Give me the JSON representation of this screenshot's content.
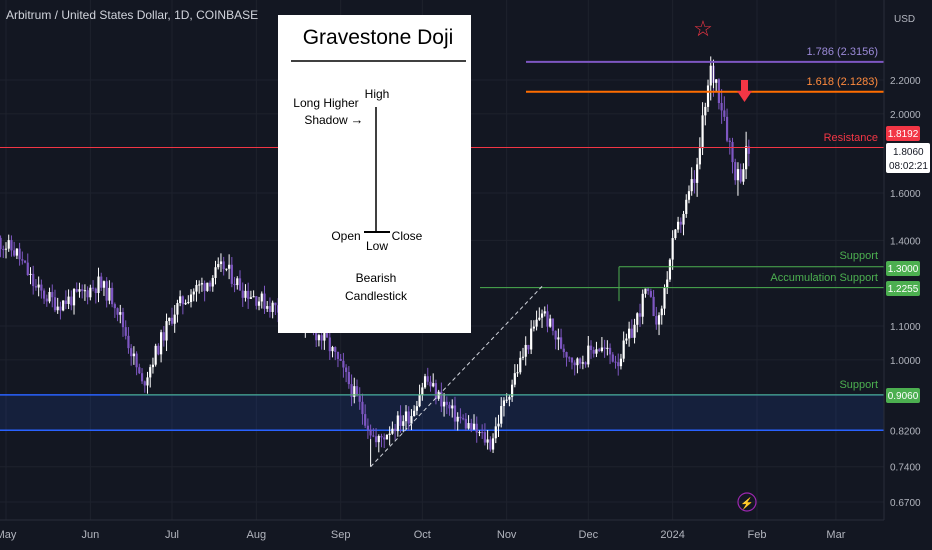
{
  "header": {
    "title": "Arbitrum / United States Dollar, 1D, COINBASE",
    "currency": "USD"
  },
  "inset": {
    "title": "Gravestone Doji",
    "high": "High",
    "shadow_line1": "Long Higher",
    "shadow_line2": "Shadow",
    "arrow": "→",
    "open": "Open",
    "close": "Close",
    "low": "Low",
    "caption_line1": "Bearish",
    "caption_line2": "Candlestick"
  },
  "annotations": {
    "fib_1786": "1.786 (2.3156)",
    "fib_1618": "1.618 (2.1283)",
    "resistance": "Resistance",
    "support_top": "Support",
    "accumulation": "Accumulation Support",
    "support_bottom": "Support",
    "star": "☆",
    "bolt": "⚡"
  },
  "price_tags": {
    "resistance": "1.8192",
    "current": "1.8060",
    "countdown": "08:02:21",
    "support_1300": "1.3000",
    "support_12255": "1.2255",
    "support_0906": "0.9060"
  },
  "colors": {
    "background": "#131722",
    "bull": "#ffffff",
    "bear": "#7e57c2",
    "fib_1786": "#7e57c2",
    "fib_1618": "#ff6d00",
    "resistance": "#f23645",
    "support": "#4caf50",
    "zone": "#2962ff",
    "arrow": "#f23645"
  },
  "chart_data": {
    "type": "candlestick",
    "y_scale": "log",
    "ylim": [
      0.63,
      2.62
    ],
    "x_tick_labels": [
      "May",
      "Jun",
      "Jul",
      "Aug",
      "Sep",
      "Oct",
      "Nov",
      "Dec",
      "2024",
      "Feb",
      "Mar"
    ],
    "y_tick_labels": [
      "2.2000",
      "2.0000",
      "1.6000",
      "1.4000",
      "1.1000",
      "1.0000",
      "0.8200",
      "0.7400",
      "0.6700"
    ],
    "y_tick_values": [
      2.2,
      2.0,
      1.6,
      1.4,
      1.1,
      1.0,
      0.82,
      0.74,
      0.67
    ],
    "levels": {
      "fib_1786": 2.3156,
      "fib_1618": 2.1283,
      "resistance": 1.8192,
      "support": 1.3,
      "accumulation_support": 1.2255,
      "support_low": 0.906,
      "zone_top": 0.906,
      "zone_bottom": 0.82
    },
    "price_path": [
      [
        "2023-04-28",
        1.4
      ],
      [
        "2023-05-05",
        1.35
      ],
      [
        "2023-05-12",
        1.22
      ],
      [
        "2023-05-20",
        1.17
      ],
      [
        "2023-05-28",
        1.2
      ],
      [
        "2023-06-04",
        1.24
      ],
      [
        "2023-06-10",
        1.18
      ],
      [
        "2023-06-15",
        1.05
      ],
      [
        "2023-06-20",
        0.93
      ],
      [
        "2023-06-25",
        1.02
      ],
      [
        "2023-07-02",
        1.15
      ],
      [
        "2023-07-08",
        1.21
      ],
      [
        "2023-07-13",
        1.24
      ],
      [
        "2023-07-20",
        1.3
      ],
      [
        "2023-07-27",
        1.22
      ],
      [
        "2023-08-05",
        1.17
      ],
      [
        "2023-08-13",
        1.14
      ],
      [
        "2023-08-20",
        1.1
      ],
      [
        "2023-08-27",
        1.05
      ],
      [
        "2023-09-03",
        0.95
      ],
      [
        "2023-09-10",
        0.85
      ],
      [
        "2023-09-14",
        0.79
      ],
      [
        "2023-09-20",
        0.83
      ],
      [
        "2023-09-27",
        0.86
      ],
      [
        "2023-10-02",
        0.95
      ],
      [
        "2023-10-06",
        0.91
      ],
      [
        "2023-10-12",
        0.86
      ],
      [
        "2023-10-20",
        0.82
      ],
      [
        "2023-10-26",
        0.79
      ],
      [
        "2023-11-02",
        0.92
      ],
      [
        "2023-11-09",
        1.05
      ],
      [
        "2023-11-14",
        1.15
      ],
      [
        "2023-11-20",
        1.05
      ],
      [
        "2023-11-27",
        0.99
      ],
      [
        "2023-12-04",
        1.04
      ],
      [
        "2023-12-12",
        1.0
      ],
      [
        "2023-12-18",
        1.1
      ],
      [
        "2023-12-22",
        1.21
      ],
      [
        "2023-12-27",
        1.11
      ],
      [
        "2024-01-01",
        1.38
      ],
      [
        "2024-01-06",
        1.55
      ],
      [
        "2024-01-10",
        1.7
      ],
      [
        "2024-01-12",
        1.93
      ],
      [
        "2024-01-15",
        2.25
      ],
      [
        "2024-01-17",
        2.2
      ],
      [
        "2024-01-20",
        2.0
      ],
      [
        "2024-01-23",
        1.75
      ],
      [
        "2024-01-25",
        1.68
      ],
      [
        "2024-01-27",
        1.74
      ],
      [
        "2024-01-29",
        1.81
      ]
    ],
    "annotated_extremes": {
      "low": {
        "date": "2023-09-12",
        "value": 0.74
      },
      "peak": {
        "date": "2024-01-16",
        "value": 2.33
      }
    }
  }
}
